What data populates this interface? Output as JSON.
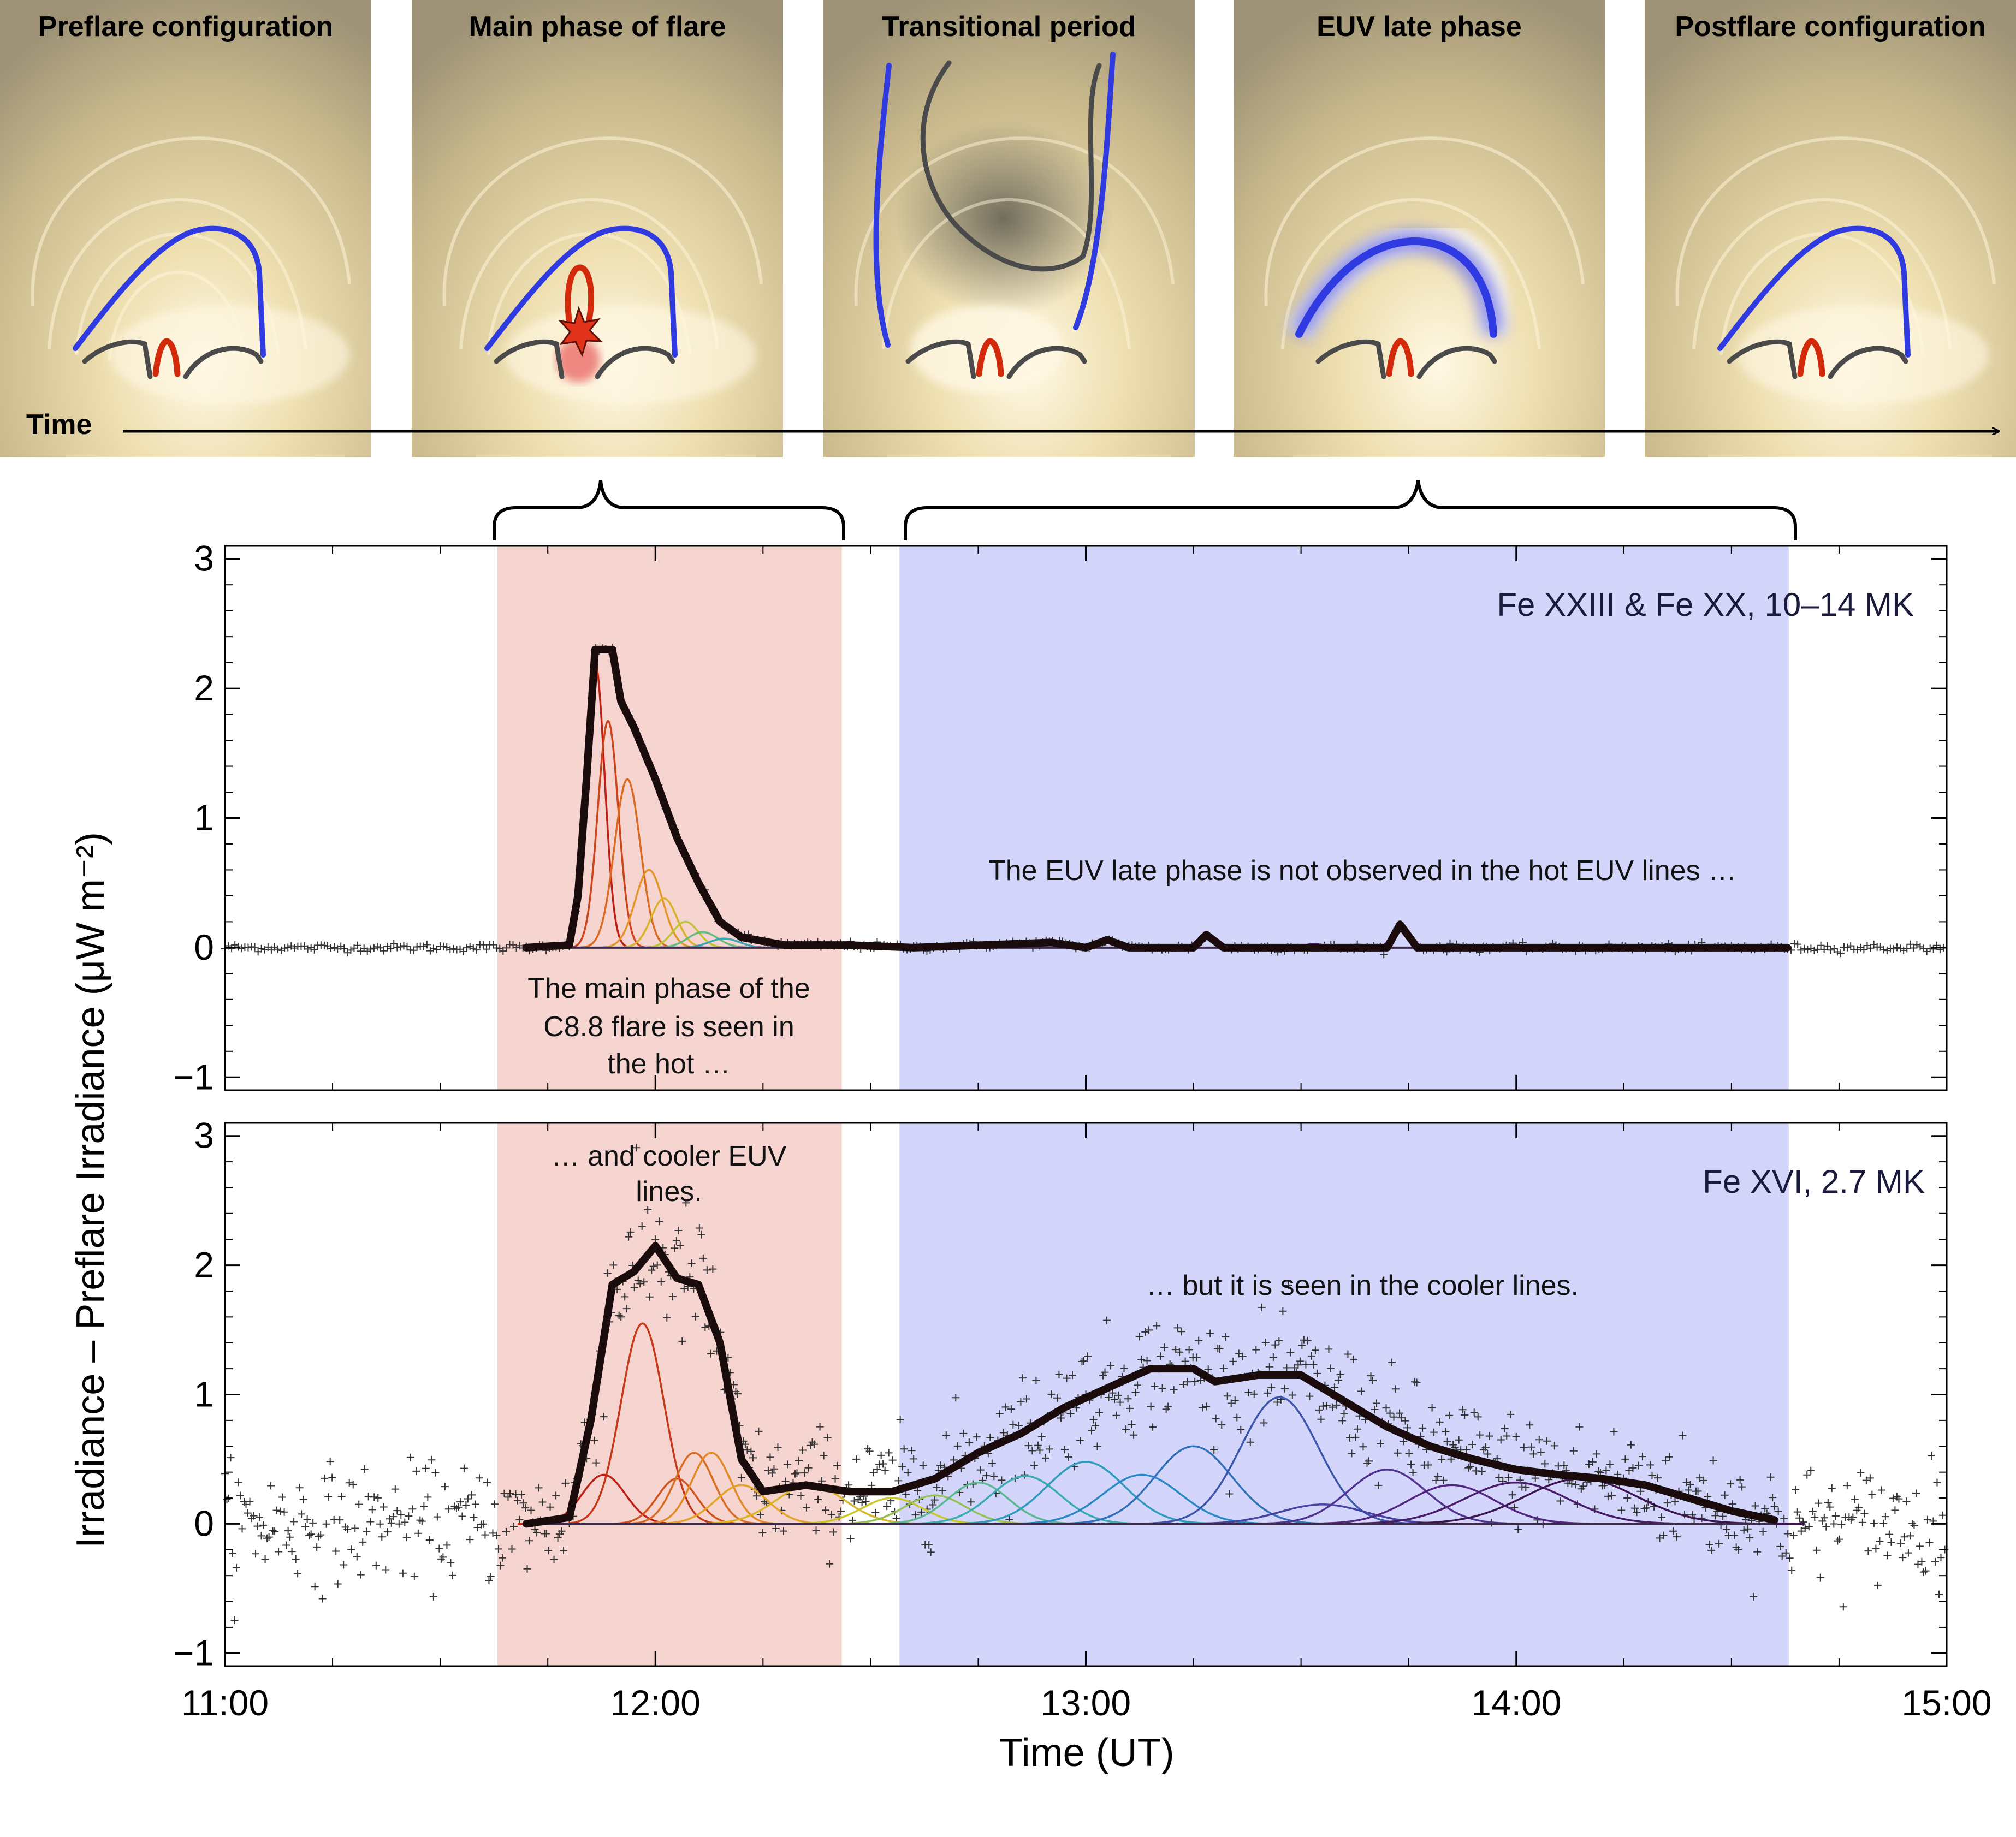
{
  "panels": [
    {
      "title": "Preflare configuration"
    },
    {
      "title": "Main phase of flare"
    },
    {
      "title": "Transitional period"
    },
    {
      "title": "EUV late phase"
    },
    {
      "title": "Postflare configuration"
    }
  ],
  "time_arrow_label": "Time",
  "colors": {
    "solar_bg": "#e7d8a8",
    "solar_bright": "#fff8e4",
    "solar_dark": "#8b826d",
    "loop_blue": "#2f3be0",
    "loop_red": "#d32a0c",
    "loop_gray": "#4a4a4a",
    "main_phase_shade": "#f6d4cf",
    "late_phase_shade": "#d3d6fa",
    "total_curve": "#1a0c0c"
  },
  "chart_data": [
    {
      "type": "line",
      "label": "Fe XXIII & Fe XX, 10–14 MK",
      "annotations": [
        "The EUV late phase is not observed in the hot EUV lines …",
        "The main phase of the",
        "C8.8 flare is seen in",
        "the hot …"
      ],
      "xlim": [
        11.0,
        15.0
      ],
      "ylim": [
        -1.1,
        3.1
      ],
      "yticks": [
        "−1",
        "0",
        "1",
        "2",
        "3"
      ],
      "main_phase_shade": [
        11.633,
        12.433
      ],
      "late_phase_shade": [
        12.567,
        14.633
      ],
      "total_fit": [
        [
          11.7,
          0.0
        ],
        [
          11.8,
          0.02
        ],
        [
          11.82,
          0.4
        ],
        [
          11.84,
          1.3
        ],
        [
          11.86,
          2.3
        ],
        [
          11.9,
          2.3
        ],
        [
          11.92,
          1.9
        ],
        [
          11.95,
          1.7
        ],
        [
          12.0,
          1.3
        ],
        [
          12.05,
          0.85
        ],
        [
          12.1,
          0.5
        ],
        [
          12.15,
          0.2
        ],
        [
          12.2,
          0.08
        ],
        [
          12.3,
          0.02
        ],
        [
          12.45,
          0.02
        ],
        [
          12.6,
          0.0
        ],
        [
          12.92,
          0.04
        ],
        [
          13.0,
          0.0
        ],
        [
          13.05,
          0.06
        ],
        [
          13.1,
          0.0
        ],
        [
          13.25,
          0.0
        ],
        [
          13.28,
          0.1
        ],
        [
          13.32,
          0.0
        ],
        [
          13.7,
          0.0
        ],
        [
          13.73,
          0.18
        ],
        [
          13.77,
          0.0
        ],
        [
          14.63,
          0.0
        ]
      ],
      "components": [
        {
          "center": 11.86,
          "width": 0.022,
          "amp": 2.2
        },
        {
          "center": 11.89,
          "width": 0.024,
          "amp": 1.75
        },
        {
          "center": 11.935,
          "width": 0.03,
          "amp": 1.3
        },
        {
          "center": 11.985,
          "width": 0.032,
          "amp": 0.6
        },
        {
          "center": 12.02,
          "width": 0.03,
          "amp": 0.38
        },
        {
          "center": 12.07,
          "width": 0.03,
          "amp": 0.2
        },
        {
          "center": 12.11,
          "width": 0.035,
          "amp": 0.12
        },
        {
          "center": 12.16,
          "width": 0.035,
          "amp": 0.07
        },
        {
          "center": 12.42,
          "width": 0.05,
          "amp": 0.03
        }
      ],
      "late_bumps": [
        {
          "center": 12.92,
          "width": 0.02,
          "amp": 0.04
        },
        {
          "center": 13.06,
          "width": 0.02,
          "amp": 0.06
        },
        {
          "center": 13.28,
          "width": 0.018,
          "amp": 0.1
        },
        {
          "center": 13.53,
          "width": 0.02,
          "amp": 0.03
        },
        {
          "center": 13.73,
          "width": 0.018,
          "amp": 0.18
        }
      ]
    },
    {
      "type": "line",
      "label": "Fe XVI, 2.7 MK",
      "annotations": [
        "… and cooler EUV",
        "lines.",
        "… but it is seen in the cooler lines."
      ],
      "xlim": [
        11.0,
        15.0
      ],
      "ylim": [
        -1.1,
        3.1
      ],
      "yticks": [
        "−1",
        "0",
        "1",
        "2",
        "3"
      ],
      "xticks": [
        "11:00",
        "12:00",
        "13:00",
        "14:00",
        "15:00"
      ],
      "xlabel": "Time (UT)",
      "shared_ylabel": "Irradiance – Preflare Irradiance (μW m⁻²)",
      "main_phase_shade": [
        11.633,
        12.433
      ],
      "late_phase_shade": [
        12.567,
        14.633
      ],
      "total_fit": [
        [
          11.7,
          0.0
        ],
        [
          11.8,
          0.05
        ],
        [
          11.85,
          0.8
        ],
        [
          11.9,
          1.85
        ],
        [
          11.95,
          1.95
        ],
        [
          12.0,
          2.15
        ],
        [
          12.05,
          1.9
        ],
        [
          12.1,
          1.85
        ],
        [
          12.15,
          1.4
        ],
        [
          12.2,
          0.5
        ],
        [
          12.25,
          0.25
        ],
        [
          12.35,
          0.3
        ],
        [
          12.45,
          0.25
        ],
        [
          12.55,
          0.25
        ],
        [
          12.65,
          0.35
        ],
        [
          12.75,
          0.55
        ],
        [
          12.85,
          0.7
        ],
        [
          12.95,
          0.9
        ],
        [
          13.05,
          1.05
        ],
        [
          13.15,
          1.2
        ],
        [
          13.25,
          1.2
        ],
        [
          13.3,
          1.1
        ],
        [
          13.4,
          1.15
        ],
        [
          13.5,
          1.15
        ],
        [
          13.6,
          0.95
        ],
        [
          13.7,
          0.75
        ],
        [
          13.8,
          0.6
        ],
        [
          13.9,
          0.5
        ],
        [
          14.0,
          0.42
        ],
        [
          14.1,
          0.38
        ],
        [
          14.2,
          0.35
        ],
        [
          14.3,
          0.3
        ],
        [
          14.4,
          0.2
        ],
        [
          14.5,
          0.1
        ],
        [
          14.6,
          0.03
        ]
      ],
      "components": [
        {
          "center": 11.88,
          "width": 0.05,
          "amp": 0.38
        },
        {
          "center": 11.97,
          "width": 0.05,
          "amp": 1.55
        },
        {
          "center": 12.05,
          "width": 0.045,
          "amp": 0.35
        },
        {
          "center": 12.09,
          "width": 0.045,
          "amp": 0.55
        },
        {
          "center": 12.13,
          "width": 0.045,
          "amp": 0.55
        },
        {
          "center": 12.2,
          "width": 0.06,
          "amp": 0.3
        },
        {
          "center": 12.36,
          "width": 0.08,
          "amp": 0.3
        },
        {
          "center": 12.55,
          "width": 0.07,
          "amp": 0.2
        },
        {
          "center": 12.65,
          "width": 0.07,
          "amp": 0.22
        },
        {
          "center": 12.75,
          "width": 0.07,
          "amp": 0.32
        },
        {
          "center": 12.86,
          "width": 0.08,
          "amp": 0.37
        },
        {
          "center": 13.0,
          "width": 0.09,
          "amp": 0.48
        },
        {
          "center": 13.13,
          "width": 0.09,
          "amp": 0.38
        },
        {
          "center": 13.25,
          "width": 0.09,
          "amp": 0.6
        },
        {
          "center": 13.45,
          "width": 0.09,
          "amp": 0.98
        },
        {
          "center": 13.55,
          "width": 0.1,
          "amp": 0.15
        },
        {
          "center": 13.7,
          "width": 0.09,
          "amp": 0.42
        },
        {
          "center": 13.85,
          "width": 0.1,
          "amp": 0.3
        },
        {
          "center": 14.0,
          "width": 0.12,
          "amp": 0.32
        },
        {
          "center": 14.15,
          "width": 0.13,
          "amp": 0.35
        }
      ]
    }
  ]
}
